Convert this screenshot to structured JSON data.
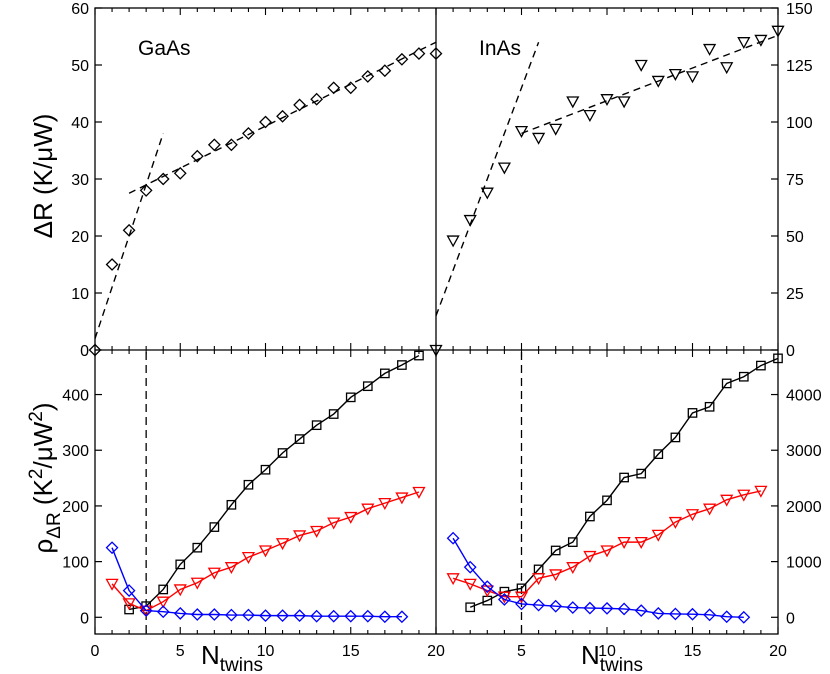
{
  "chart_data": [
    {
      "panel": "top-left",
      "type": "scatter",
      "label": "GaAs",
      "xlim": [
        0,
        20
      ],
      "ylim": [
        0,
        60
      ],
      "yticks": [
        0,
        10,
        20,
        30,
        40,
        50,
        60
      ],
      "series": [
        {
          "name": "GaAs",
          "marker": "diamond",
          "color": "#000000",
          "x": [
            0,
            1,
            2,
            3,
            4,
            5,
            6,
            7,
            8,
            9,
            10,
            11,
            12,
            13,
            14,
            15,
            16,
            17,
            18,
            19,
            20
          ],
          "y": [
            0,
            15,
            21,
            28,
            30,
            31,
            34,
            36,
            36,
            38,
            40,
            41,
            43,
            44,
            46,
            46,
            48,
            49,
            51,
            52,
            52
          ]
        }
      ],
      "fit_lines": [
        {
          "name": "steep fit",
          "x": [
            0,
            4
          ],
          "y": [
            2,
            38
          ]
        },
        {
          "name": "shallow fit",
          "x": [
            2,
            20
          ],
          "y": [
            27.5,
            54
          ]
        }
      ]
    },
    {
      "panel": "top-right",
      "type": "scatter",
      "label": "InAs",
      "xlim": [
        0,
        20
      ],
      "ylim": [
        0,
        150
      ],
      "yticks": [
        0,
        25,
        50,
        75,
        100,
        125,
        150
      ],
      "series": [
        {
          "name": "InAs",
          "marker": "triangle-down",
          "color": "#000000",
          "x": [
            0,
            1,
            2,
            3,
            4,
            5,
            6,
            7,
            8,
            9,
            10,
            11,
            12,
            13,
            14,
            15,
            16,
            17,
            18,
            19,
            20
          ],
          "y": [
            0,
            48,
            57,
            69,
            80,
            96,
            93,
            97,
            109,
            103,
            110,
            109,
            125,
            118,
            121,
            120,
            132,
            124,
            135,
            136,
            140
          ]
        }
      ],
      "fit_lines": [
        {
          "name": "steep fit",
          "x": [
            0,
            6
          ],
          "y": [
            15,
            135
          ]
        },
        {
          "name": "shallow fit",
          "x": [
            5,
            20
          ],
          "y": [
            95,
            138
          ]
        }
      ]
    },
    {
      "panel": "bottom-left",
      "type": "line",
      "xlim": [
        0,
        20
      ],
      "ylim": [
        -30,
        480
      ],
      "yticks": [
        0,
        100,
        200,
        300,
        400
      ],
      "xticks": [
        0,
        5,
        10,
        15,
        20
      ],
      "vline_x": 3,
      "series": [
        {
          "name": "squares",
          "marker": "square",
          "color": "#000000",
          "x": [
            2,
            3,
            4,
            5,
            6,
            7,
            8,
            9,
            10,
            11,
            12,
            13,
            14,
            15,
            16,
            17,
            18,
            19
          ],
          "y": [
            14,
            20,
            50,
            95,
            125,
            162,
            202,
            238,
            265,
            295,
            320,
            345,
            365,
            395,
            415,
            438,
            453,
            470
          ]
        },
        {
          "name": "triangles",
          "marker": "triangle-down",
          "color": "#ff0000",
          "x": [
            1,
            2,
            3,
            4,
            5,
            6,
            7,
            8,
            9,
            10,
            11,
            12,
            13,
            14,
            15,
            16,
            17,
            18,
            19
          ],
          "y": [
            60,
            25,
            12,
            28,
            50,
            62,
            80,
            90,
            108,
            120,
            133,
            147,
            155,
            170,
            180,
            195,
            205,
            215,
            225
          ]
        },
        {
          "name": "diamonds",
          "marker": "diamond",
          "color": "#0000ff",
          "x": [
            1,
            2,
            3,
            4,
            5,
            6,
            7,
            8,
            9,
            10,
            11,
            12,
            13,
            14,
            15,
            16,
            17,
            18
          ],
          "y": [
            125,
            48,
            12,
            10,
            7,
            5,
            5,
            4,
            4,
            3,
            3,
            3,
            2,
            2,
            2,
            2,
            1,
            1
          ]
        }
      ]
    },
    {
      "panel": "bottom-right",
      "type": "line",
      "xlim": [
        0,
        20
      ],
      "ylim": [
        -300,
        4800
      ],
      "yticks": [
        0,
        1000,
        2000,
        3000,
        4000
      ],
      "xticks": [
        5,
        10,
        15,
        20
      ],
      "vline_x": 5,
      "series": [
        {
          "name": "squares",
          "marker": "square",
          "color": "#000000",
          "x": [
            2,
            3,
            4,
            5,
            6,
            7,
            8,
            9,
            10,
            11,
            12,
            13,
            14,
            15,
            16,
            17,
            18,
            19,
            20
          ],
          "y": [
            180,
            300,
            460,
            520,
            860,
            1200,
            1350,
            1810,
            2100,
            2510,
            2580,
            2930,
            3230,
            3670,
            3780,
            4200,
            4320,
            4520,
            4650
          ]
        },
        {
          "name": "triangles",
          "marker": "triangle-down",
          "color": "#ff0000",
          "x": [
            1,
            2,
            3,
            4,
            5,
            6,
            7,
            8,
            9,
            10,
            11,
            12,
            13,
            14,
            15,
            16,
            17,
            18,
            19
          ],
          "y": [
            700,
            600,
            480,
            370,
            370,
            700,
            770,
            900,
            1100,
            1200,
            1350,
            1350,
            1480,
            1710,
            1850,
            1950,
            2110,
            2200,
            2270
          ]
        },
        {
          "name": "diamonds",
          "marker": "diamond",
          "color": "#0000ff",
          "x": [
            1,
            2,
            3,
            4,
            5,
            6,
            7,
            8,
            9,
            10,
            11,
            12,
            13,
            14,
            15,
            16,
            17,
            18
          ],
          "y": [
            1420,
            900,
            550,
            320,
            240,
            220,
            200,
            175,
            165,
            160,
            150,
            120,
            70,
            60,
            55,
            45,
            10,
            0
          ]
        }
      ]
    }
  ],
  "axes": {
    "top_ylabel": "ΔR (K/μW)",
    "bottom_ylabel_main": "ρ",
    "bottom_ylabel_sub": "ΔR",
    "bottom_ylabel_unit": " (K",
    "bottom_ylabel_sup1": "2",
    "bottom_ylabel_mid": "/μW",
    "bottom_ylabel_sup2": "2",
    "bottom_ylabel_end": ")",
    "xlabel_main": "N",
    "xlabel_sub": "twins"
  }
}
